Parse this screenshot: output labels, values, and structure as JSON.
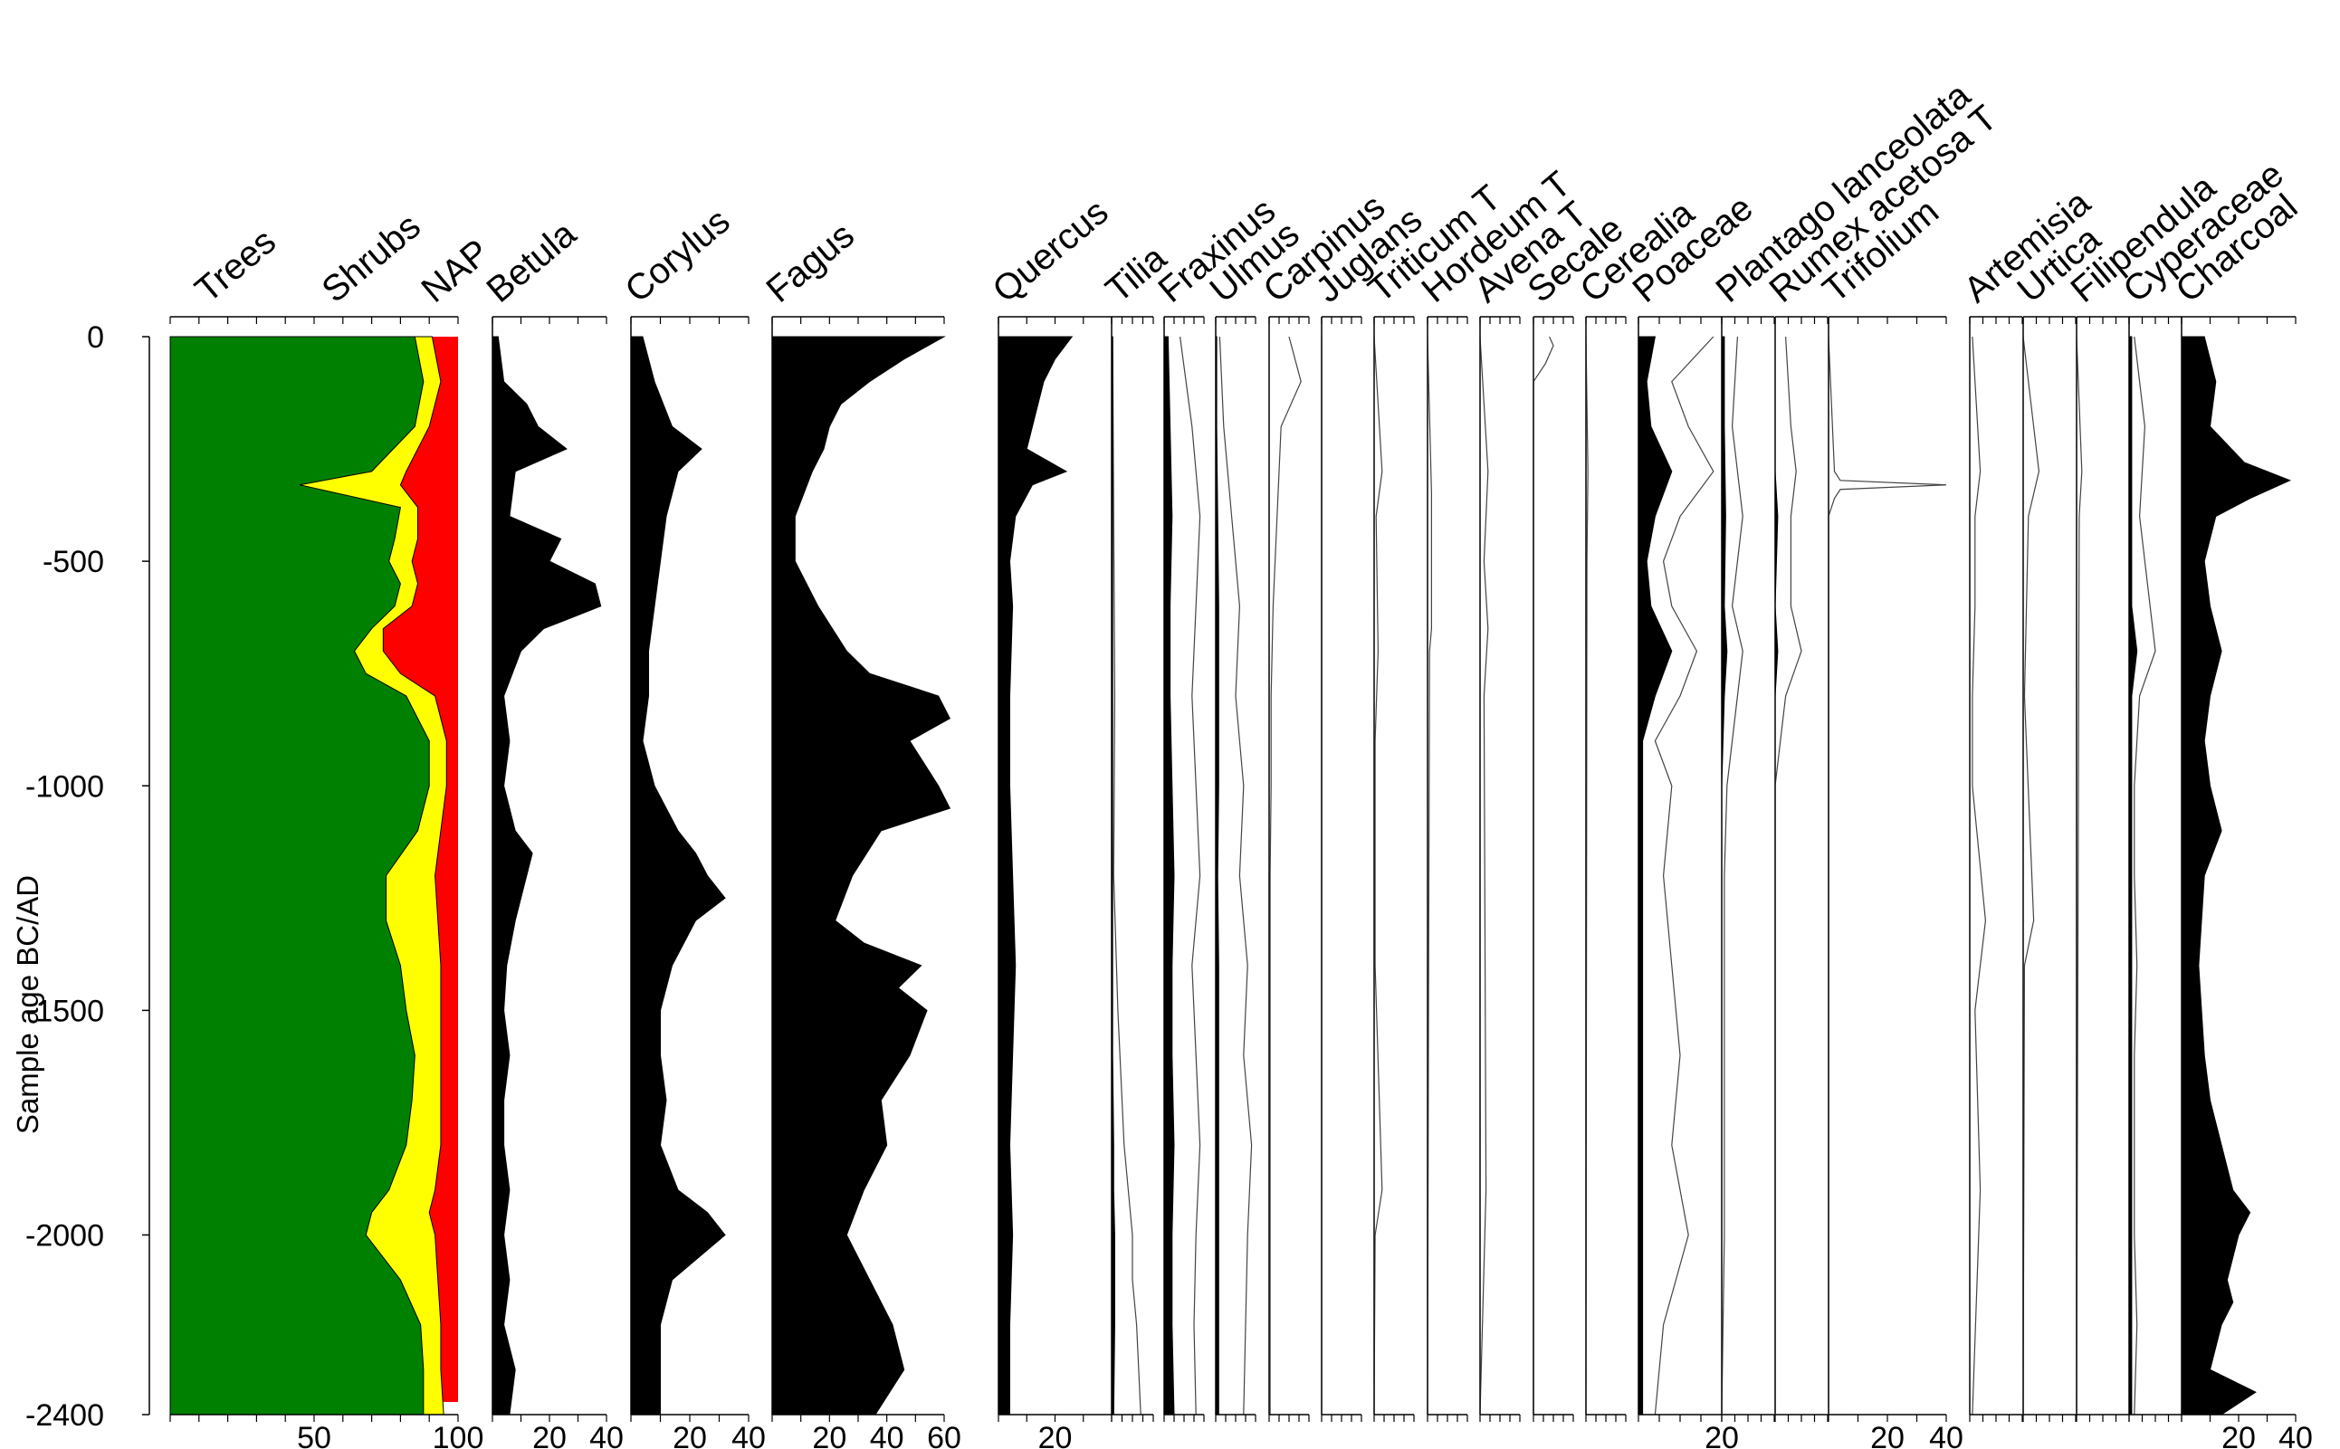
{
  "chart_data": {
    "type": "area",
    "subtype": "stratigraphic pollen diagram",
    "orientation": "vertical, age on y-axis",
    "ylabel": "Sample age BC/AD",
    "ylim": [
      -2400,
      0
    ],
    "yticks": [
      0,
      -500,
      -1000,
      -1500,
      -2000,
      -2400
    ],
    "summary_panel": {
      "series_labels": [
        "Trees",
        "Shrubs",
        "NAP"
      ],
      "colors": {
        "Trees": "#008000",
        "Shrubs": "#ffff00",
        "NAP": "#ff0000"
      },
      "xlim": [
        0,
        100
      ],
      "xtick_labels": [
        "50",
        "100"
      ],
      "age": [
        0,
        -100,
        -200,
        -300,
        -330,
        -380,
        -450,
        -500,
        -550,
        -600,
        -650,
        -700,
        -750,
        -800,
        -900,
        -1000,
        -1100,
        -1200,
        -1300,
        -1400,
        -1500,
        -1600,
        -1700,
        -1800,
        -1900,
        -1950,
        -2000,
        -2100,
        -2200,
        -2300,
        -2400
      ],
      "trees_cum": [
        85,
        88,
        85,
        70,
        45,
        80,
        78,
        76,
        80,
        78,
        70,
        64,
        68,
        82,
        90,
        90,
        86,
        75,
        75,
        80,
        82,
        85,
        84,
        82,
        76,
        70,
        68,
        80,
        87,
        88,
        88
      ],
      "shrubs_cum": [
        91,
        94,
        90,
        82,
        80,
        86,
        86,
        84,
        86,
        84,
        74,
        74,
        80,
        92,
        96,
        96,
        94,
        92,
        93,
        94,
        94,
        94,
        94,
        94,
        92,
        90,
        92,
        93,
        94,
        94,
        95
      ]
    },
    "taxa": [
      {
        "name": "Betula",
        "xlim": [
          0,
          40
        ],
        "xtick_labels": [
          "20",
          "40"
        ],
        "style": "silhouette",
        "age": [
          0,
          -100,
          -150,
          -200,
          -250,
          -300,
          -400,
          -450,
          -500,
          -550,
          -600,
          -650,
          -700,
          -800,
          -900,
          -1000,
          -1100,
          -1150,
          -1200,
          -1300,
          -1400,
          -1500,
          -1600,
          -1700,
          -1800,
          -1900,
          -2000,
          -2100,
          -2200,
          -2300,
          -2400
        ],
        "values": [
          2,
          4,
          12,
          16,
          26,
          8,
          6,
          24,
          20,
          36,
          38,
          18,
          10,
          4,
          6,
          4,
          8,
          14,
          12,
          8,
          5,
          4,
          6,
          4,
          4,
          6,
          4,
          6,
          4,
          8,
          6
        ]
      },
      {
        "name": "Corylus",
        "xlim": [
          0,
          40
        ],
        "xtick_labels": [
          "20",
          "40"
        ],
        "style": "silhouette",
        "age": [
          0,
          -100,
          -200,
          -250,
          -300,
          -400,
          -500,
          -600,
          -700,
          -800,
          -900,
          -1000,
          -1100,
          -1150,
          -1200,
          -1250,
          -1300,
          -1400,
          -1500,
          -1600,
          -1700,
          -1800,
          -1900,
          -1950,
          -2000,
          -2100,
          -2200,
          -2300,
          -2400
        ],
        "values": [
          4,
          8,
          14,
          24,
          16,
          12,
          10,
          8,
          6,
          6,
          4,
          8,
          16,
          22,
          26,
          32,
          22,
          14,
          10,
          10,
          12,
          10,
          16,
          26,
          32,
          14,
          10,
          10,
          10
        ]
      },
      {
        "name": "Fagus",
        "xlim": [
          0,
          60
        ],
        "xtick_labels": [
          "20",
          "40",
          "60"
        ],
        "style": "silhouette",
        "age": [
          0,
          -50,
          -100,
          -150,
          -200,
          -250,
          -300,
          -400,
          -500,
          -600,
          -700,
          -750,
          -800,
          -850,
          -900,
          -1000,
          -1050,
          -1100,
          -1200,
          -1300,
          -1350,
          -1400,
          -1450,
          -1500,
          -1600,
          -1700,
          -1800,
          -1900,
          -2000,
          -2100,
          -2200,
          -2300,
          -2400
        ],
        "values": [
          60,
          46,
          34,
          24,
          20,
          18,
          14,
          8,
          8,
          16,
          26,
          34,
          58,
          62,
          48,
          58,
          62,
          38,
          28,
          22,
          32,
          52,
          44,
          54,
          48,
          38,
          40,
          32,
          26,
          34,
          42,
          46,
          36
        ]
      },
      {
        "name": "Quercus",
        "xlim": [
          0,
          40
        ],
        "xtick_labels": [
          "20"
        ],
        "style": "silhouette",
        "age": [
          0,
          -50,
          -100,
          -150,
          -200,
          -250,
          -300,
          -330,
          -400,
          -500,
          -600,
          -800,
          -1000,
          -1200,
          -1400,
          -1600,
          -1800,
          -2000,
          -2200,
          -2400
        ],
        "values": [
          26,
          20,
          16,
          14,
          12,
          10,
          24,
          12,
          6,
          4,
          5,
          4,
          4,
          5,
          6,
          5,
          4,
          5,
          4,
          4
        ]
      },
      {
        "name": "Tilia",
        "xlim": [
          0,
          20
        ],
        "xtick_labels": [],
        "style": "filled+exaggeration",
        "age": [
          0,
          -400,
          -800,
          -1200,
          -1500,
          -1600,
          -1800,
          -1900,
          -2000,
          -2100,
          -2200,
          -2400
        ],
        "values": [
          0.5,
          0.5,
          0.5,
          0.5,
          0.5,
          0.5,
          1,
          1,
          1.5,
          1.5,
          1.5,
          1
        ],
        "exaggerated": [
          0.5,
          1,
          1.5,
          1,
          3,
          4,
          6,
          8,
          10,
          10,
          12,
          14
        ]
      },
      {
        "name": "Fraxinus",
        "xlim": [
          0,
          20
        ],
        "xtick_labels": [],
        "style": "filled+exaggeration",
        "age": [
          0,
          -200,
          -400,
          -600,
          -800,
          -1000,
          -1200,
          -1400,
          -1600,
          -1800,
          -2000,
          -2200,
          -2400
        ],
        "values": [
          2,
          3,
          4,
          3,
          3,
          4,
          5,
          4,
          4,
          5,
          4,
          4,
          5
        ],
        "exaggerated": [
          8,
          14,
          18,
          16,
          14,
          16,
          18,
          14,
          16,
          18,
          16,
          15,
          16
        ]
      },
      {
        "name": "Ulmus",
        "xlim": [
          0,
          20
        ],
        "xtick_labels": [],
        "style": "filled+exaggeration",
        "age": [
          0,
          -200,
          -400,
          -600,
          -800,
          -1000,
          -1200,
          -1400,
          -1600,
          -1800,
          -2000,
          -2200,
          -2400
        ],
        "values": [
          0.5,
          0.5,
          1,
          1.5,
          1.5,
          1.5,
          1,
          1.5,
          1.5,
          1.5,
          1.5,
          1.5,
          1.5
        ],
        "exaggerated": [
          2,
          4,
          8,
          12,
          10,
          14,
          12,
          16,
          14,
          18,
          16,
          15,
          14
        ]
      },
      {
        "name": "Carpinus",
        "xlim": [
          0,
          20
        ],
        "xtick_labels": [],
        "style": "filled+exaggeration",
        "age": [
          0,
          -100,
          -200,
          -400,
          -600,
          -800,
          -1000,
          -1200,
          -1400,
          -1600,
          -2000,
          -2400
        ],
        "values": [
          0,
          0,
          0,
          0,
          0,
          0,
          0,
          0,
          0,
          0,
          0,
          0
        ],
        "exaggerated": [
          10,
          16,
          6,
          4,
          2,
          1,
          1,
          0.5,
          0.5,
          0.5,
          0.5,
          0.5
        ]
      },
      {
        "name": "Juglans",
        "xlim": [
          0,
          20
        ],
        "xtick_labels": [],
        "style": "filled+exaggeration",
        "age": [
          0,
          -2400
        ],
        "values": [
          0,
          0
        ],
        "exaggerated": [
          0,
          0
        ]
      },
      {
        "name": "Triticum T",
        "xlim": [
          0,
          20
        ],
        "xtick_labels": [],
        "style": "filled+exaggeration",
        "age": [
          0,
          -300,
          -400,
          -700,
          -900,
          -1400,
          -1900,
          -2000,
          -2400
        ],
        "values": [
          0,
          0,
          0,
          0,
          0,
          0,
          0,
          0,
          0
        ],
        "exaggerated": [
          0,
          4,
          1,
          2,
          0.5,
          0.5,
          4,
          0.5,
          0
        ]
      },
      {
        "name": "Hordeum T",
        "xlim": [
          0,
          20
        ],
        "xtick_labels": [],
        "style": "filled+exaggeration",
        "age": [
          0,
          -350,
          -650,
          -700,
          -1500,
          -2400
        ],
        "values": [
          0,
          0,
          0,
          0,
          0,
          0
        ],
        "exaggerated": [
          0,
          2,
          2,
          1,
          0.5,
          0
        ]
      },
      {
        "name": "Avena T",
        "xlim": [
          0,
          20
        ],
        "xtick_labels": [],
        "style": "filled+exaggeration",
        "age": [
          0,
          -300,
          -500,
          -650,
          -800,
          -1900,
          -2400
        ],
        "values": [
          0,
          0,
          0,
          0,
          0,
          0,
          0
        ],
        "exaggerated": [
          0,
          4,
          2,
          4,
          2,
          3,
          0
        ]
      },
      {
        "name": "Secale",
        "xlim": [
          0,
          20
        ],
        "xtick_labels": [],
        "style": "filled+exaggeration",
        "age": [
          0,
          -20,
          -60,
          -100,
          -400,
          -2400
        ],
        "values": [
          0,
          0,
          0,
          0,
          0,
          0
        ],
        "exaggerated": [
          8,
          10,
          6,
          0,
          0,
          0
        ]
      },
      {
        "name": "Cerealia",
        "xlim": [
          0,
          20
        ],
        "xtick_labels": [],
        "style": "filled+exaggeration",
        "age": [
          0,
          -300,
          -500,
          -2400
        ],
        "values": [
          0,
          0,
          0,
          0
        ],
        "exaggerated": [
          0,
          1,
          0.5,
          0
        ]
      },
      {
        "name": "Poaceae",
        "xlim": [
          0,
          20
        ],
        "xtick_labels": [
          "20"
        ],
        "style": "filled+exaggeration",
        "age": [
          0,
          -100,
          -200,
          -300,
          -400,
          -500,
          -600,
          -700,
          -800,
          -900,
          -1000,
          -1200,
          -1400,
          -1600,
          -1800,
          -2000,
          -2200,
          -2400
        ],
        "values": [
          4,
          2,
          3,
          8,
          4,
          2,
          3,
          8,
          4,
          1,
          1,
          1,
          1,
          1,
          1,
          1,
          1,
          1
        ],
        "exaggerated": [
          18,
          8,
          12,
          18,
          10,
          6,
          8,
          14,
          10,
          4,
          8,
          6,
          8,
          10,
          8,
          12,
          6,
          4
        ]
      },
      {
        "name": "Plantago lanceolata",
        "xlim": [
          0,
          20
        ],
        "xtick_labels": [],
        "style": "filled+exaggeration",
        "age": [
          0,
          -200,
          -400,
          -600,
          -700,
          -800,
          -1000,
          -1200,
          -1400,
          -1600,
          -1800,
          -2000,
          -2400
        ],
        "values": [
          1,
          1,
          1.5,
          1,
          2,
          1,
          0,
          0,
          0,
          0,
          0,
          0,
          0
        ],
        "exaggerated": [
          6,
          4,
          8,
          4,
          8,
          6,
          2,
          1,
          1,
          1,
          1,
          1,
          0
        ]
      },
      {
        "name": "Rumex acetosa T",
        "xlim": [
          0,
          20
        ],
        "xtick_labels": [],
        "style": "filled+exaggeration",
        "age": [
          0,
          -200,
          -300,
          -400,
          -600,
          -700,
          -800,
          -1000,
          -2400
        ],
        "values": [
          0,
          0,
          0,
          1,
          0,
          1,
          0,
          0,
          0
        ],
        "exaggerated": [
          4,
          6,
          8,
          6,
          6,
          10,
          4,
          0,
          0
        ]
      },
      {
        "name": "Trifolium",
        "xlim": [
          0,
          40
        ],
        "xtick_labels": [
          "20",
          "40"
        ],
        "style": "filled+exaggeration",
        "age": [
          0,
          -300,
          -320,
          -330,
          -340,
          -360,
          -400,
          -2400
        ],
        "values": [
          0,
          0,
          0,
          0,
          0,
          0,
          0,
          0
        ],
        "exaggerated": [
          0,
          2,
          4,
          40,
          4,
          2,
          0,
          0
        ]
      },
      {
        "name": "Artemisia",
        "xlim": [
          0,
          20
        ],
        "xtick_labels": [],
        "style": "filled+exaggeration",
        "age": [
          0,
          -300,
          -400,
          -600,
          -800,
          -1000,
          -1300,
          -1500,
          -1900,
          -2400
        ],
        "values": [
          0,
          0,
          0,
          0,
          0,
          0,
          0,
          0,
          0,
          0
        ],
        "exaggerated": [
          1,
          4,
          2,
          2,
          1,
          1,
          6,
          2,
          4,
          1
        ]
      },
      {
        "name": "Urtica",
        "xlim": [
          0,
          20
        ],
        "xtick_labels": [],
        "style": "filled+exaggeration",
        "age": [
          0,
          -300,
          -400,
          -800,
          -1300,
          -1400,
          -2400
        ],
        "values": [
          0,
          0,
          0,
          0,
          0,
          0,
          0
        ],
        "exaggerated": [
          0,
          6,
          2,
          0.5,
          4,
          0.5,
          0
        ]
      },
      {
        "name": "Filipendula",
        "xlim": [
          0,
          20
        ],
        "xtick_labels": [],
        "style": "filled+exaggeration",
        "age": [
          0,
          -300,
          -400,
          -2400
        ],
        "values": [
          0,
          0,
          0,
          0
        ],
        "exaggerated": [
          0,
          2,
          1,
          0
        ]
      },
      {
        "name": "Cyperaceae",
        "xlim": [
          0,
          20
        ],
        "xtick_labels": [],
        "style": "filled+exaggeration",
        "age": [
          0,
          -200,
          -400,
          -600,
          -700,
          -800,
          -1000,
          -1200,
          -1400,
          -1600,
          -1800,
          -2000,
          -2200,
          -2400
        ],
        "values": [
          1,
          1,
          1,
          1,
          3,
          1,
          1,
          1,
          1,
          1,
          1,
          1,
          1,
          1
        ],
        "exaggerated": [
          2,
          6,
          4,
          8,
          10,
          4,
          2,
          2,
          3,
          2,
          2,
          2,
          3,
          2
        ]
      },
      {
        "name": "Charcoal",
        "xlim": [
          0,
          40
        ],
        "xtick_labels": [
          "20",
          "40"
        ],
        "style": "silhouette",
        "age": [
          0,
          -100,
          -200,
          -280,
          -320,
          -360,
          -400,
          -500,
          -600,
          -700,
          -800,
          -900,
          -1000,
          -1100,
          -1200,
          -1400,
          -1600,
          -1700,
          -1800,
          -1900,
          -1950,
          -2000,
          -2100,
          -2150,
          -2200,
          -2300,
          -2350,
          -2400
        ],
        "values": [
          8,
          12,
          10,
          22,
          38,
          24,
          12,
          8,
          10,
          14,
          10,
          8,
          10,
          14,
          8,
          6,
          8,
          10,
          14,
          18,
          24,
          20,
          16,
          18,
          14,
          10,
          26,
          14
        ]
      }
    ]
  }
}
